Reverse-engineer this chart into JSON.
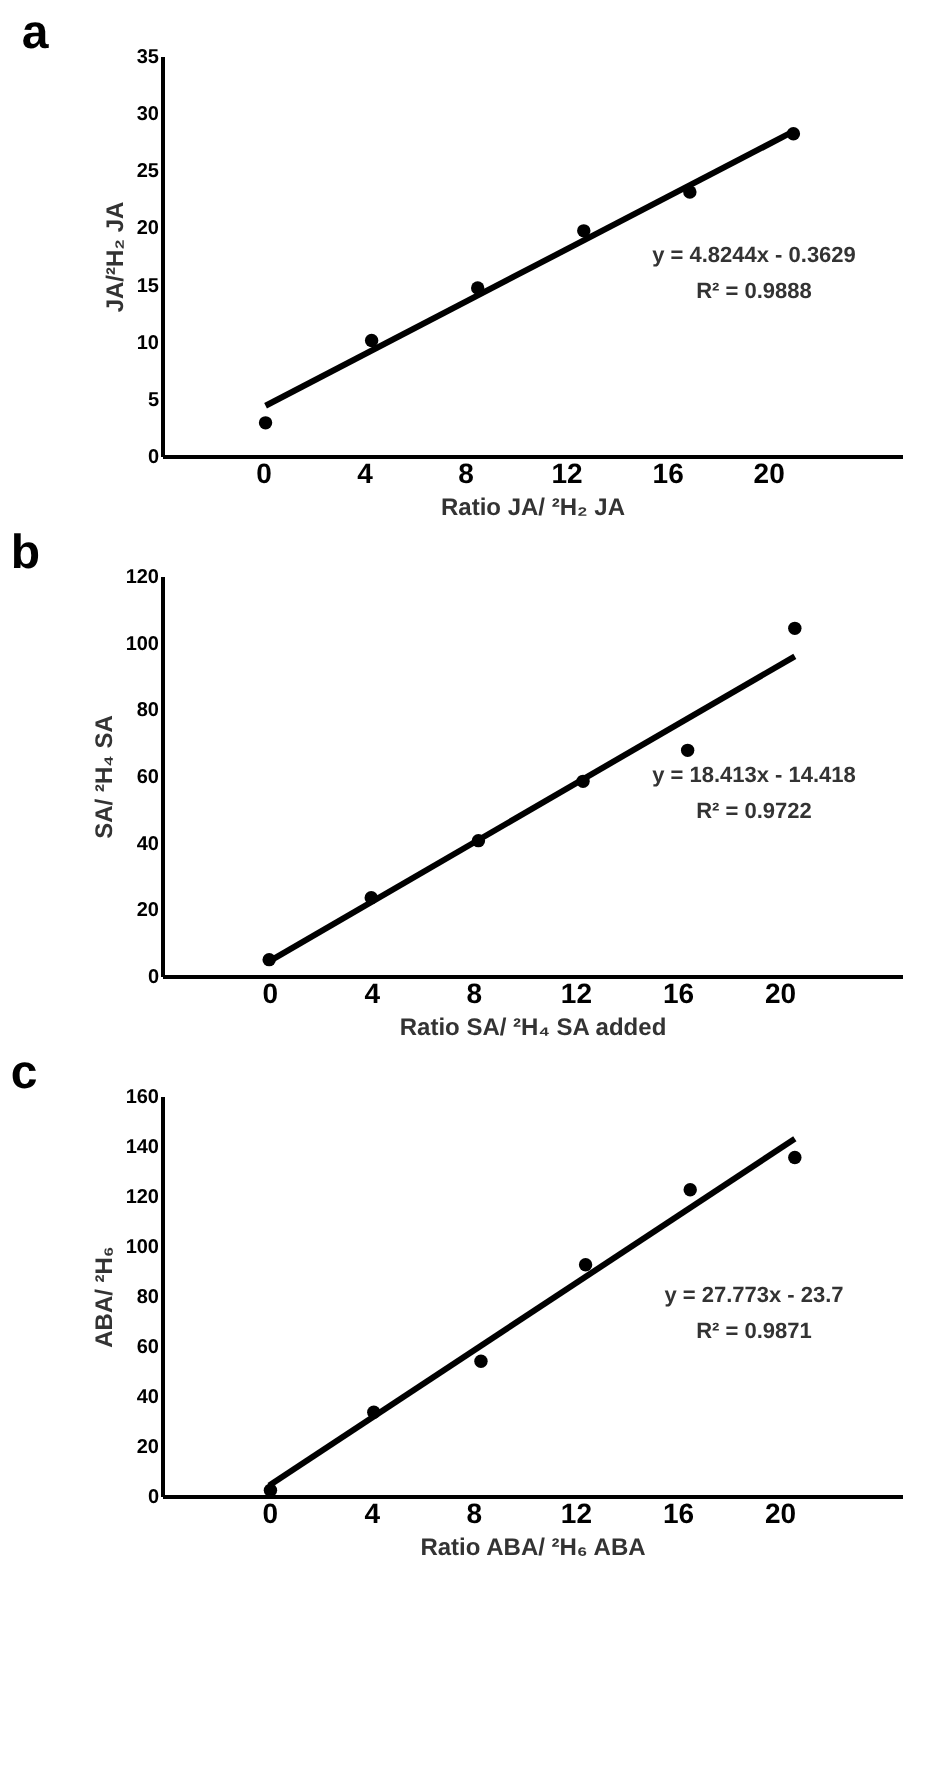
{
  "chart_data": [
    {
      "type": "scatter",
      "title": "a",
      "xlabel": "Ratio JA/ ²H₂ JA",
      "ylabel": "JA/²H₂ JA",
      "xlim": [
        -4,
        25.3
      ],
      "xticks": [
        0,
        4,
        8,
        12,
        16,
        20
      ],
      "ylim": [
        0,
        35
      ],
      "yticks": [
        0,
        5,
        10,
        15,
        20,
        25,
        30,
        35
      ],
      "grid": false,
      "series": [
        {
          "color": "#000000",
          "marker": "circle",
          "x": [
            0.1,
            4.3,
            8.5,
            12.7,
            16.9,
            21.0
          ],
          "values": [
            2.9,
            10.1,
            14.7,
            19.7,
            23.1,
            28.2
          ]
        },
        {
          "type": "line",
          "color": "#000000",
          "line_style": "solid",
          "x": [
            0.1,
            21.0
          ],
          "values": [
            4.4,
            28.4
          ]
        }
      ],
      "annotations": [
        "y = 4.8244x - 0.3629",
        "R² = 0.9888"
      ]
    },
    {
      "type": "scatter",
      "title": "b",
      "xlabel": "Ratio SA/ ²H₄ SA added",
      "ylabel": "SA/ ²H₄ SA",
      "xlim": [
        -4.2,
        24.8
      ],
      "xticks": [
        0,
        4,
        8,
        12,
        16,
        20
      ],
      "ylim": [
        0,
        120
      ],
      "yticks": [
        0,
        20,
        40,
        60,
        80,
        100,
        120
      ],
      "grid": false,
      "series": [
        {
          "color": "#000000",
          "marker": "circle",
          "x": [
            0,
            4.0,
            8.2,
            12.3,
            16.4,
            20.6
          ],
          "values": [
            4.9,
            23.5,
            40.6,
            58.4,
            67.7,
            104.3
          ]
        },
        {
          "type": "line",
          "color": "#000000",
          "line_style": "solid",
          "x": [
            0,
            20.6
          ],
          "values": [
            4.4,
            95.9
          ]
        }
      ],
      "annotations": [
        "y = 18.413x - 14.418",
        "R² = 0.9722"
      ]
    },
    {
      "type": "scatter",
      "title": "c",
      "xlabel": "Ratio ABA/ ²H₆ ABA",
      "ylabel": "ABA/ ²H₆",
      "xlim": [
        -4.2,
        24.8
      ],
      "xticks": [
        0,
        4,
        8,
        12,
        16,
        20
      ],
      "ylim": [
        0,
        160
      ],
      "yticks": [
        0,
        20,
        40,
        60,
        80,
        100,
        120,
        140,
        160
      ],
      "grid": false,
      "series": [
        {
          "color": "#000000",
          "marker": "circle",
          "x": [
            0.05,
            4.1,
            8.3,
            12.4,
            16.5,
            20.6
          ],
          "values": [
            2.3,
            33.5,
            53.9,
            92.5,
            122.5,
            135.4
          ]
        },
        {
          "type": "line",
          "color": "#000000",
          "line_style": "solid",
          "x": [
            0,
            20.6
          ],
          "values": [
            4.2,
            142.9
          ]
        }
      ],
      "annotations": [
        "y = 27.773x - 23.7",
        "R² = 0.9871"
      ]
    }
  ]
}
